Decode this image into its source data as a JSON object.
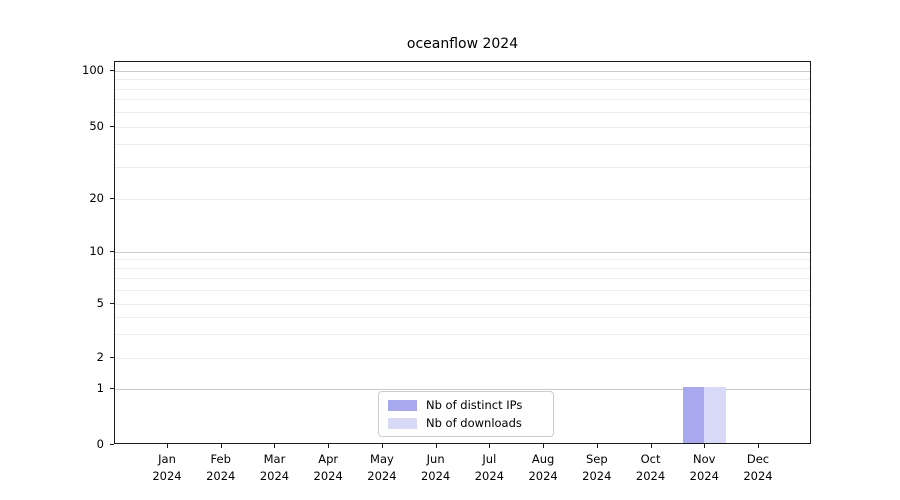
{
  "chart_data": {
    "type": "bar",
    "title": "oceanflow 2024",
    "x_tick_labels": [
      {
        "month": "Jan",
        "year": "2024"
      },
      {
        "month": "Feb",
        "year": "2024"
      },
      {
        "month": "Mar",
        "year": "2024"
      },
      {
        "month": "Apr",
        "year": "2024"
      },
      {
        "month": "May",
        "year": "2024"
      },
      {
        "month": "Jun",
        "year": "2024"
      },
      {
        "month": "Jul",
        "year": "2024"
      },
      {
        "month": "Aug",
        "year": "2024"
      },
      {
        "month": "Sep",
        "year": "2024"
      },
      {
        "month": "Oct",
        "year": "2024"
      },
      {
        "month": "Nov",
        "year": "2024"
      },
      {
        "month": "Dec",
        "year": "2024"
      }
    ],
    "series": [
      {
        "name": "Nb of distinct IPs",
        "color": "#a8a8ef",
        "values": [
          0,
          0,
          0,
          0,
          0,
          0,
          0,
          0,
          0,
          0,
          1,
          0
        ]
      },
      {
        "name": "Nb of downloads",
        "color": "#d8d8f7",
        "values": [
          0,
          0,
          0,
          0,
          0,
          0,
          0,
          0,
          0,
          0,
          1,
          0
        ]
      }
    ],
    "y_axis": {
      "scale": "symlog",
      "tick_values": [
        100,
        50,
        20,
        10,
        5,
        2,
        1,
        0
      ],
      "range": [
        0,
        110
      ],
      "grid_major_values": [
        1,
        10,
        100
      ],
      "grid_minor_values": [
        2,
        3,
        4,
        5,
        6,
        7,
        8,
        9,
        20,
        30,
        40,
        50,
        60,
        70,
        80,
        90
      ]
    },
    "legend": {
      "position": "lower center"
    },
    "colors": {
      "grid_major": "#c9c9c9",
      "grid_minor": "#ededed",
      "axis": "#1a1a1a",
      "text": "#000000",
      "bar_distinct_ips": "#a8a8ef",
      "bar_downloads": "#d8d8f7"
    }
  }
}
